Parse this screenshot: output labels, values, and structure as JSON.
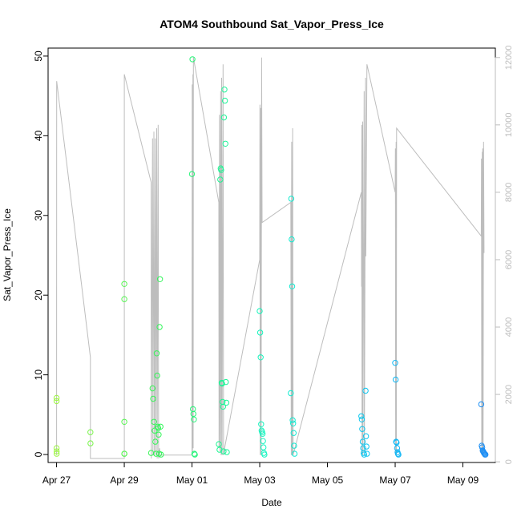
{
  "chart_data": {
    "type": "scatter",
    "title": "ATOM4 Southbound Sat_Vapor_Press_Ice",
    "xlabel": "Date",
    "ylabel": "Sat_Vapor_Press_Ice",
    "x_range_days": [
      "2018-04-26T18:00",
      "2018-05-09T23:00"
    ],
    "x_ticks": [
      "Apr 27",
      "Apr 29",
      "May 01",
      "May 03",
      "May 05",
      "May 07",
      "May 09"
    ],
    "ylim": [
      -1,
      51
    ],
    "y_ticks": [
      0,
      10,
      20,
      30,
      40,
      50
    ],
    "y2_label": "",
    "y2_lim": [
      -20,
      12280
    ],
    "y2_ticks": [
      0,
      2000,
      4000,
      6000,
      8000,
      10000,
      12000
    ],
    "legend": "none",
    "grid": false,
    "series": [
      {
        "marker": "open-circle",
        "color_by_time": true,
        "colors": [
          "#9cf542",
          "#2df55a",
          "#12f5c8",
          "#0bbff5",
          "#1f8ff5"
        ],
        "points": [
          [
            "2018-04-27T00:00",
            7.1
          ],
          [
            "2018-04-27T00:02",
            6.7
          ],
          [
            "2018-04-27T00:03",
            0.8
          ],
          [
            "2018-04-27T00:04",
            0.4
          ],
          [
            "2018-04-27T00:05",
            0.1
          ],
          [
            "2018-04-28T00:00",
            2.8
          ],
          [
            "2018-04-28T00:02",
            1.4
          ],
          [
            "2018-04-29T00:00",
            21.4
          ],
          [
            "2018-04-29T00:01",
            19.5
          ],
          [
            "2018-04-29T00:02",
            4.1
          ],
          [
            "2018-04-29T00:03",
            0.1
          ],
          [
            "2018-04-29T00:05",
            0.1
          ],
          [
            "2018-04-29T19:00",
            0.2
          ],
          [
            "2018-04-29T20:00",
            8.3
          ],
          [
            "2018-04-29T20:30",
            7.0
          ],
          [
            "2018-04-29T21:00",
            4.1
          ],
          [
            "2018-04-29T21:30",
            3.0
          ],
          [
            "2018-04-29T22:00",
            1.6
          ],
          [
            "2018-04-29T22:30",
            0.1
          ],
          [
            "2018-04-29T23:00",
            12.7
          ],
          [
            "2018-04-29T23:20",
            9.9
          ],
          [
            "2018-04-29T23:40",
            3.5
          ],
          [
            "2018-04-30T00:00",
            3.3
          ],
          [
            "2018-04-30T00:20",
            2.5
          ],
          [
            "2018-04-30T00:40",
            0.1
          ],
          [
            "2018-04-30T01:00",
            16.0
          ],
          [
            "2018-04-30T01:20",
            22.0
          ],
          [
            "2018-04-30T01:40",
            3.5
          ],
          [
            "2018-04-30T02:00",
            0.0
          ],
          [
            "2018-05-01T00:00",
            35.2
          ],
          [
            "2018-05-01T00:20",
            49.6
          ],
          [
            "2018-05-01T00:40",
            5.7
          ],
          [
            "2018-05-01T01:00",
            5.1
          ],
          [
            "2018-05-01T01:20",
            4.4
          ],
          [
            "2018-05-01T01:40",
            0.1
          ],
          [
            "2018-05-01T02:00",
            0.0
          ],
          [
            "2018-05-01T19:00",
            1.3
          ],
          [
            "2018-05-01T19:30",
            0.6
          ],
          [
            "2018-05-01T20:00",
            34.5
          ],
          [
            "2018-05-01T20:20",
            35.9
          ],
          [
            "2018-05-01T20:40",
            35.7
          ],
          [
            "2018-05-01T21:00",
            9.0
          ],
          [
            "2018-05-01T21:20",
            8.9
          ],
          [
            "2018-05-01T21:40",
            6.6
          ],
          [
            "2018-05-01T22:00",
            6.0
          ],
          [
            "2018-05-01T22:20",
            0.4
          ],
          [
            "2018-05-01T22:40",
            42.3
          ],
          [
            "2018-05-01T23:00",
            45.8
          ],
          [
            "2018-05-01T23:20",
            44.4
          ],
          [
            "2018-05-01T23:40",
            39.0
          ],
          [
            "2018-05-02T00:00",
            9.1
          ],
          [
            "2018-05-02T00:20",
            6.5
          ],
          [
            "2018-05-02T00:40",
            0.3
          ],
          [
            "2018-05-03T00:00",
            18.0
          ],
          [
            "2018-05-03T00:20",
            15.3
          ],
          [
            "2018-05-03T00:40",
            12.2
          ],
          [
            "2018-05-03T01:00",
            3.8
          ],
          [
            "2018-05-03T01:20",
            3.0
          ],
          [
            "2018-05-03T01:40",
            2.8
          ],
          [
            "2018-05-03T02:00",
            2.6
          ],
          [
            "2018-05-03T02:20",
            1.7
          ],
          [
            "2018-05-03T02:40",
            0.9
          ],
          [
            "2018-05-03T03:00",
            0.2
          ],
          [
            "2018-05-03T03:20",
            0.0
          ],
          [
            "2018-05-03T22:00",
            7.7
          ],
          [
            "2018-05-03T22:20",
            32.1
          ],
          [
            "2018-05-03T22:40",
            27.0
          ],
          [
            "2018-05-03T23:00",
            21.1
          ],
          [
            "2018-05-03T23:20",
            4.3
          ],
          [
            "2018-05-03T23:40",
            3.9
          ],
          [
            "2018-05-04T00:00",
            2.7
          ],
          [
            "2018-05-04T00:20",
            1.1
          ],
          [
            "2018-05-04T00:40",
            0.1
          ],
          [
            "2018-05-06T00:00",
            4.8
          ],
          [
            "2018-05-06T00:20",
            4.4
          ],
          [
            "2018-05-06T00:40",
            3.2
          ],
          [
            "2018-05-06T01:00",
            1.6
          ],
          [
            "2018-05-06T01:20",
            0.8
          ],
          [
            "2018-05-06T01:40",
            0.2
          ],
          [
            "2018-05-06T02:00",
            0.0
          ],
          [
            "2018-05-06T03:00",
            8.0
          ],
          [
            "2018-05-06T03:20",
            2.3
          ],
          [
            "2018-05-06T03:40",
            1.0
          ],
          [
            "2018-05-06T04:00",
            0.1
          ],
          [
            "2018-05-07T00:00",
            11.5
          ],
          [
            "2018-05-07T00:20",
            9.4
          ],
          [
            "2018-05-07T00:40",
            1.6
          ],
          [
            "2018-05-07T01:00",
            1.5
          ],
          [
            "2018-05-07T01:20",
            0.8
          ],
          [
            "2018-05-07T01:40",
            0.3
          ],
          [
            "2018-05-07T02:00",
            0.1
          ],
          [
            "2018-05-07T02:20",
            0.0
          ],
          [
            "2018-05-09T13:00",
            6.3
          ],
          [
            "2018-05-09T13:20",
            1.1
          ],
          [
            "2018-05-09T13:40",
            0.9
          ],
          [
            "2018-05-09T14:00",
            0.5
          ],
          [
            "2018-05-09T14:20",
            0.4
          ],
          [
            "2018-05-09T14:40",
            0.3
          ],
          [
            "2018-05-09T15:00",
            0.2
          ],
          [
            "2018-05-09T15:20",
            0.1
          ],
          [
            "2018-05-09T15:40",
            0.0
          ],
          [
            "2018-05-09T16:00",
            0.0
          ]
        ]
      },
      {
        "type": "line",
        "axis": "right",
        "color": "#bdbdbd",
        "points": [
          [
            "2018-04-27T00:00",
            5200
          ],
          [
            "2018-04-27T00:03",
            200
          ],
          [
            "2018-04-27T00:06",
            11300
          ],
          [
            "2018-04-28T00:00",
            3100
          ],
          [
            "2018-04-28T00:01",
            100
          ],
          [
            "2018-04-29T00:00",
            100
          ],
          [
            "2018-04-29T00:03",
            11500
          ],
          [
            "2018-04-29T19:00",
            8300
          ],
          [
            "2018-04-29T19:10",
            100
          ],
          [
            "2018-04-29T20:00",
            9600
          ],
          [
            "2018-04-29T20:20",
            200
          ],
          [
            "2018-04-29T21:00",
            9800
          ],
          [
            "2018-04-29T21:20",
            200
          ],
          [
            "2018-04-29T22:00",
            9600
          ],
          [
            "2018-04-29T22:20",
            200
          ],
          [
            "2018-04-29T23:00",
            9900
          ],
          [
            "2018-04-29T23:20",
            100
          ],
          [
            "2018-04-30T00:00",
            10000
          ],
          [
            "2018-04-30T00:20",
            100
          ],
          [
            "2018-04-30T00:40",
            200
          ],
          [
            "2018-04-30T01:00",
            400
          ],
          [
            "2018-04-30T01:20",
            200
          ],
          [
            "2018-05-01T00:00",
            200
          ],
          [
            "2018-05-01T00:10",
            11200
          ],
          [
            "2018-05-01T00:20",
            300
          ],
          [
            "2018-05-01T00:40",
            11500
          ],
          [
            "2018-05-01T00:50",
            400
          ],
          [
            "2018-05-01T01:00",
            12000
          ],
          [
            "2018-05-01T19:00",
            7700
          ],
          [
            "2018-05-01T19:10",
            400
          ],
          [
            "2018-05-01T19:30",
            10300
          ],
          [
            "2018-05-01T19:50",
            300
          ],
          [
            "2018-05-01T20:20",
            11000
          ],
          [
            "2018-05-01T20:40",
            200
          ],
          [
            "2018-05-01T21:00",
            11400
          ],
          [
            "2018-05-01T21:20",
            200
          ],
          [
            "2018-05-01T22:00",
            11800
          ],
          [
            "2018-05-01T22:20",
            200
          ],
          [
            "2018-05-01T22:40",
            300
          ],
          [
            "2018-05-03T00:00",
            6000
          ],
          [
            "2018-05-03T00:10",
            10600
          ],
          [
            "2018-05-03T00:20",
            200
          ],
          [
            "2018-05-03T00:40",
            10500
          ],
          [
            "2018-05-03T01:00",
            200
          ],
          [
            "2018-05-03T01:20",
            12000
          ],
          [
            "2018-05-03T01:40",
            7100
          ],
          [
            "2018-05-03T22:00",
            7700
          ],
          [
            "2018-05-03T22:20",
            200
          ],
          [
            "2018-05-03T22:40",
            9500
          ],
          [
            "2018-05-03T23:00",
            200
          ],
          [
            "2018-05-03T23:20",
            9900
          ],
          [
            "2018-05-03T23:40",
            200
          ],
          [
            "2018-05-06T00:00",
            8000
          ],
          [
            "2018-05-06T00:10",
            5200
          ],
          [
            "2018-05-06T00:20",
            10000
          ],
          [
            "2018-05-06T00:30",
            200
          ],
          [
            "2018-05-06T01:00",
            10100
          ],
          [
            "2018-05-06T01:10",
            200
          ],
          [
            "2018-05-06T02:00",
            11000
          ],
          [
            "2018-05-06T02:10",
            300
          ],
          [
            "2018-05-06T03:00",
            11400
          ],
          [
            "2018-05-06T03:10",
            6100
          ],
          [
            "2018-05-06T04:00",
            11800
          ],
          [
            "2018-05-07T00:00",
            8000
          ],
          [
            "2018-05-07T00:10",
            9300
          ],
          [
            "2018-05-07T00:20",
            200
          ],
          [
            "2018-05-07T00:40",
            9500
          ],
          [
            "2018-05-07T00:50",
            200
          ],
          [
            "2018-05-07T01:00",
            9900
          ],
          [
            "2018-05-09T13:00",
            6700
          ],
          [
            "2018-05-09T13:10",
            9000
          ],
          [
            "2018-05-09T13:20",
            200
          ],
          [
            "2018-05-09T13:40",
            9200
          ],
          [
            "2018-05-09T13:50",
            200
          ],
          [
            "2018-05-09T14:00",
            9300
          ],
          [
            "2018-05-09T14:20",
            200
          ],
          [
            "2018-05-09T14:40",
            9500
          ],
          [
            "2018-05-09T15:00",
            6200
          ]
        ]
      }
    ]
  }
}
